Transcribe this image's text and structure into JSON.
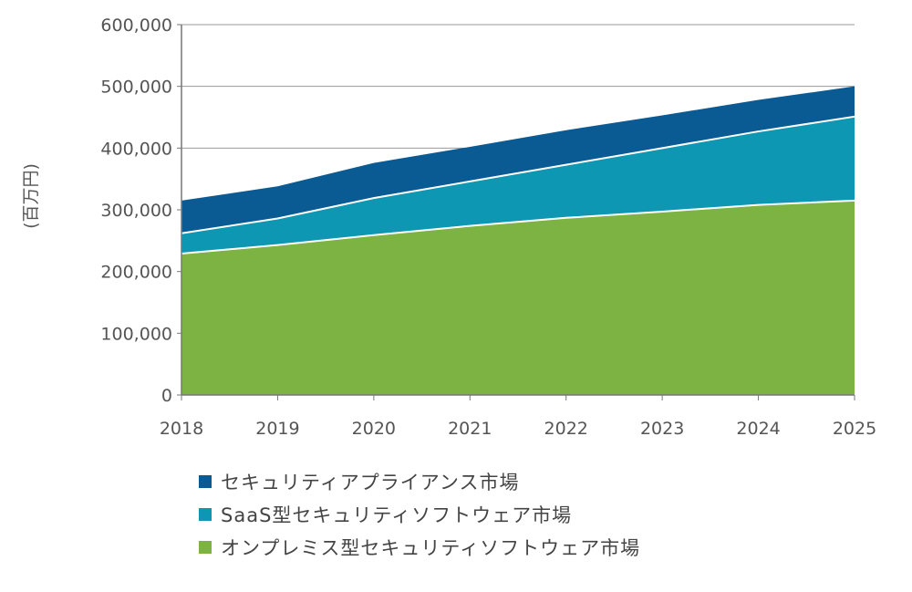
{
  "chart_data": {
    "type": "area",
    "stacked": true,
    "x": [
      "2018",
      "2019",
      "2020",
      "2021",
      "2022",
      "2023",
      "2024",
      "2025"
    ],
    "ylabel": "(百万円)",
    "ylim": [
      0,
      600000
    ],
    "yticks": [
      "0",
      "100,000",
      "200,000",
      "300,000",
      "400,000",
      "500,000",
      "600,000"
    ],
    "ytick_values": [
      0,
      100000,
      200000,
      300000,
      400000,
      500000,
      600000
    ],
    "grid": true,
    "legend_position": "bottom",
    "series": [
      {
        "name": "オンプレミス型セキュリティソフトウェア市場",
        "color": "#7cb342",
        "values": [
          229000,
          243000,
          259000,
          274000,
          287000,
          297000,
          308000,
          315000
        ]
      },
      {
        "name": "SaaS型セキュリティソフトウェア市場",
        "color": "#0e97b3",
        "values": [
          33000,
          43000,
          60000,
          72000,
          86000,
          103000,
          119000,
          136000
        ]
      },
      {
        "name": "セキュリティアプライアンス市場",
        "color": "#0a5a93",
        "values": [
          53000,
          52000,
          57000,
          56000,
          56000,
          53000,
          51000,
          49000
        ]
      }
    ],
    "legend_order": [
      2,
      1,
      0
    ]
  }
}
